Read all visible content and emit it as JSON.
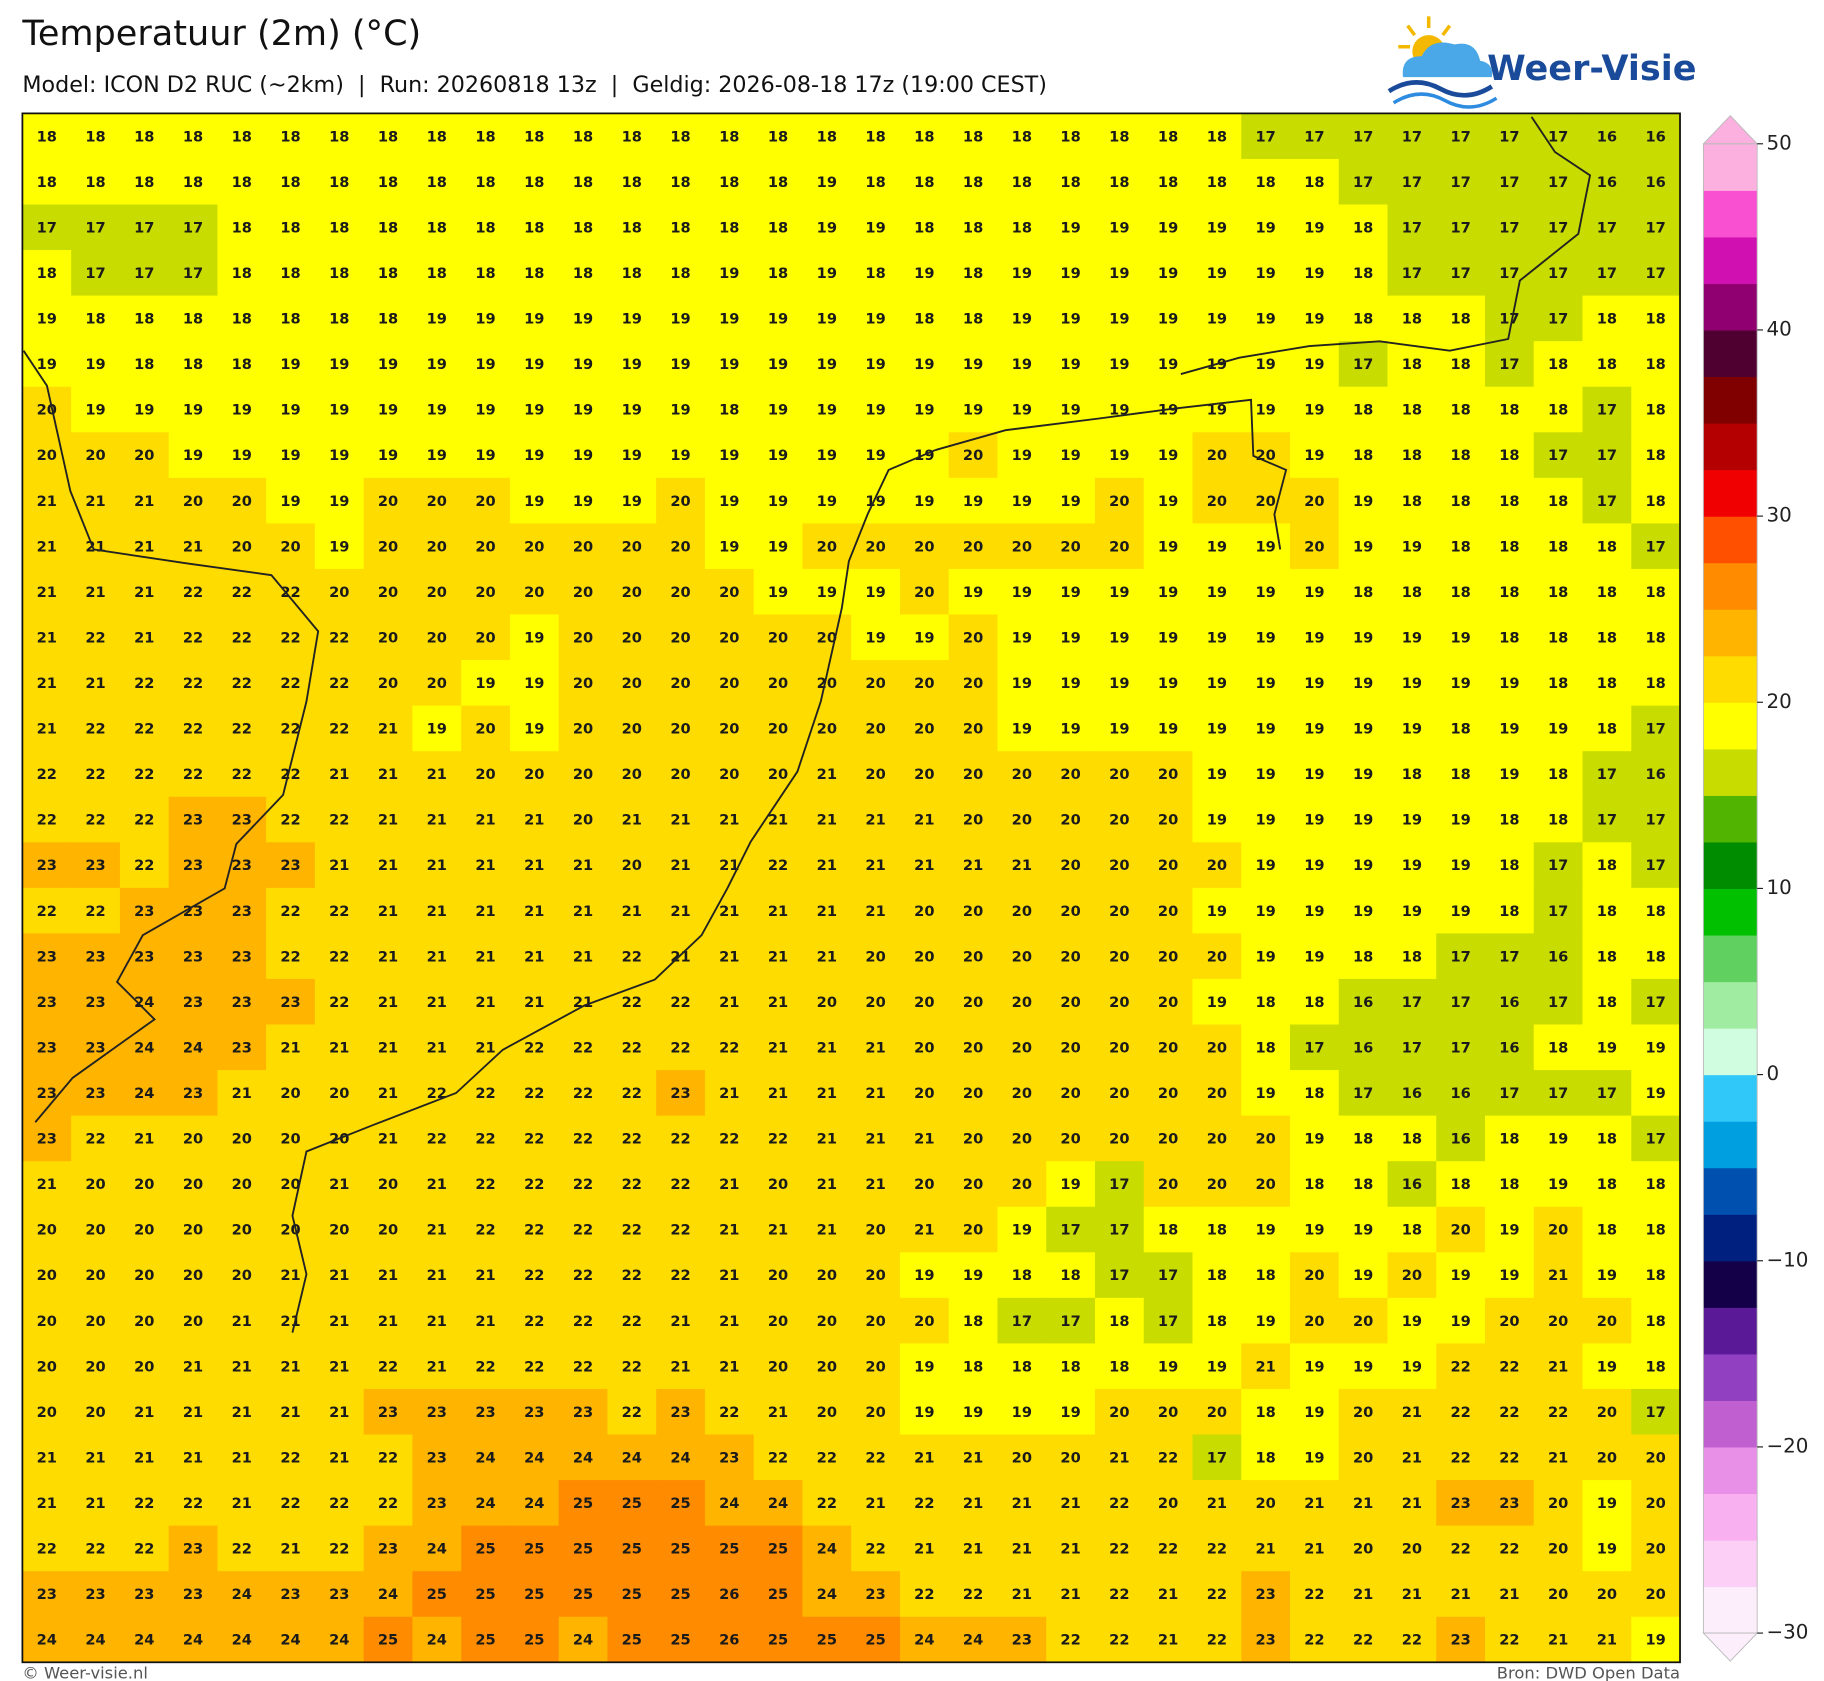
{
  "header": {
    "title": "Temperatuur (2m) (°C)",
    "subtitle": "Model: ICON D2 RUC (~2km)  |  Run: 20260818 13z  |  Geldig: 2026-08-18 17z (19:00 CEST)"
  },
  "logo": {
    "text": "Weer-Visie"
  },
  "grid": {
    "rows": [
      [
        18,
        18,
        18,
        18,
        18,
        18,
        18,
        18,
        18,
        18,
        18,
        18,
        18,
        18,
        18,
        18,
        18,
        18,
        18,
        18,
        18,
        18,
        18,
        18,
        18,
        17,
        17,
        17,
        17,
        17,
        17,
        17,
        16,
        16
      ],
      [
        18,
        18,
        18,
        18,
        18,
        18,
        18,
        18,
        18,
        18,
        18,
        18,
        18,
        18,
        18,
        18,
        19,
        18,
        18,
        18,
        18,
        18,
        18,
        18,
        18,
        18,
        18,
        17,
        17,
        17,
        17,
        17,
        16,
        16
      ],
      [
        17,
        17,
        17,
        17,
        18,
        18,
        18,
        18,
        18,
        18,
        18,
        18,
        18,
        18,
        18,
        18,
        19,
        19,
        18,
        18,
        18,
        19,
        19,
        19,
        19,
        19,
        19,
        18,
        17,
        17,
        17,
        17,
        17,
        17
      ],
      [
        18,
        17,
        17,
        17,
        18,
        18,
        18,
        18,
        18,
        18,
        18,
        18,
        18,
        18,
        19,
        18,
        19,
        18,
        19,
        18,
        19,
        19,
        19,
        19,
        19,
        19,
        19,
        18,
        17,
        17,
        17,
        17,
        17,
        17
      ],
      [
        19,
        18,
        18,
        18,
        18,
        18,
        18,
        18,
        19,
        19,
        19,
        19,
        19,
        19,
        19,
        19,
        19,
        19,
        18,
        18,
        19,
        19,
        19,
        19,
        19,
        19,
        19,
        18,
        18,
        18,
        17,
        17,
        18,
        18
      ],
      [
        19,
        19,
        18,
        18,
        18,
        19,
        19,
        19,
        19,
        19,
        19,
        19,
        19,
        19,
        19,
        19,
        19,
        19,
        19,
        19,
        19,
        19,
        19,
        19,
        19,
        19,
        19,
        17,
        18,
        18,
        17,
        18,
        18,
        18
      ],
      [
        20,
        19,
        19,
        19,
        19,
        19,
        19,
        19,
        19,
        19,
        19,
        19,
        19,
        19,
        18,
        19,
        19,
        19,
        19,
        19,
        19,
        19,
        19,
        19,
        19,
        19,
        19,
        18,
        18,
        18,
        18,
        18,
        17,
        18
      ],
      [
        20,
        20,
        20,
        19,
        19,
        19,
        19,
        19,
        19,
        19,
        19,
        19,
        19,
        19,
        19,
        19,
        19,
        19,
        19,
        20,
        19,
        19,
        19,
        19,
        20,
        20,
        19,
        18,
        18,
        18,
        18,
        17,
        17,
        18
      ],
      [
        21,
        21,
        21,
        20,
        20,
        19,
        19,
        20,
        20,
        20,
        19,
        19,
        19,
        20,
        19,
        19,
        19,
        19,
        19,
        19,
        19,
        19,
        20,
        19,
        20,
        20,
        20,
        19,
        18,
        18,
        18,
        18,
        17,
        18
      ],
      [
        21,
        21,
        21,
        21,
        20,
        20,
        19,
        20,
        20,
        20,
        20,
        20,
        20,
        20,
        19,
        19,
        20,
        20,
        20,
        20,
        20,
        20,
        20,
        19,
        19,
        19,
        20,
        19,
        19,
        18,
        18,
        18,
        18,
        17
      ],
      [
        21,
        21,
        21,
        22,
        22,
        22,
        20,
        20,
        20,
        20,
        20,
        20,
        20,
        20,
        20,
        19,
        19,
        19,
        20,
        19,
        19,
        19,
        19,
        19,
        19,
        19,
        19,
        18,
        18,
        18,
        18,
        18,
        18,
        18
      ],
      [
        21,
        22,
        21,
        22,
        22,
        22,
        22,
        20,
        20,
        20,
        19,
        20,
        20,
        20,
        20,
        20,
        20,
        19,
        19,
        20,
        19,
        19,
        19,
        19,
        19,
        19,
        19,
        19,
        19,
        19,
        18,
        18,
        18,
        18
      ],
      [
        21,
        21,
        22,
        22,
        22,
        22,
        22,
        20,
        20,
        19,
        19,
        20,
        20,
        20,
        20,
        20,
        20,
        20,
        20,
        20,
        19,
        19,
        19,
        19,
        19,
        19,
        19,
        19,
        19,
        19,
        19,
        18,
        18,
        18
      ],
      [
        21,
        22,
        22,
        22,
        22,
        22,
        22,
        21,
        19,
        20,
        19,
        20,
        20,
        20,
        20,
        20,
        20,
        20,
        20,
        20,
        19,
        19,
        19,
        19,
        19,
        19,
        19,
        19,
        19,
        18,
        19,
        19,
        18,
        17
      ],
      [
        22,
        22,
        22,
        22,
        22,
        22,
        21,
        21,
        21,
        20,
        20,
        20,
        20,
        20,
        20,
        20,
        21,
        20,
        20,
        20,
        20,
        20,
        20,
        20,
        19,
        19,
        19,
        19,
        18,
        18,
        19,
        18,
        17,
        16
      ],
      [
        22,
        22,
        22,
        23,
        23,
        22,
        22,
        21,
        21,
        21,
        21,
        20,
        21,
        21,
        21,
        21,
        21,
        21,
        21,
        20,
        20,
        20,
        20,
        20,
        19,
        19,
        19,
        19,
        19,
        19,
        18,
        18,
        17,
        17
      ],
      [
        23,
        23,
        22,
        23,
        23,
        23,
        21,
        21,
        21,
        21,
        21,
        21,
        20,
        21,
        21,
        22,
        21,
        21,
        21,
        21,
        21,
        20,
        20,
        20,
        20,
        19,
        19,
        19,
        19,
        19,
        18,
        17,
        18,
        17
      ],
      [
        22,
        22,
        23,
        23,
        23,
        22,
        22,
        21,
        21,
        21,
        21,
        21,
        21,
        21,
        21,
        21,
        21,
        21,
        20,
        20,
        20,
        20,
        20,
        20,
        19,
        19,
        19,
        19,
        19,
        19,
        18,
        17,
        18,
        18
      ],
      [
        23,
        23,
        23,
        23,
        23,
        22,
        22,
        21,
        21,
        21,
        21,
        21,
        22,
        21,
        21,
        21,
        21,
        20,
        20,
        20,
        20,
        20,
        20,
        20,
        20,
        19,
        19,
        18,
        18,
        17,
        17,
        16,
        18,
        18
      ],
      [
        23,
        23,
        24,
        23,
        23,
        23,
        22,
        21,
        21,
        21,
        21,
        21,
        22,
        22,
        21,
        21,
        20,
        20,
        20,
        20,
        20,
        20,
        20,
        20,
        19,
        18,
        18,
        16,
        17,
        17,
        16,
        17,
        18,
        17
      ],
      [
        23,
        23,
        24,
        24,
        23,
        21,
        21,
        21,
        21,
        21,
        22,
        22,
        22,
        22,
        22,
        21,
        21,
        21,
        20,
        20,
        20,
        20,
        20,
        20,
        20,
        18,
        17,
        16,
        17,
        17,
        16,
        18,
        19,
        19
      ],
      [
        23,
        23,
        24,
        23,
        21,
        20,
        20,
        21,
        22,
        22,
        22,
        22,
        22,
        23,
        21,
        21,
        21,
        21,
        20,
        20,
        20,
        20,
        20,
        20,
        20,
        19,
        18,
        17,
        16,
        16,
        17,
        17,
        17,
        19
      ],
      [
        23,
        22,
        21,
        20,
        20,
        20,
        20,
        21,
        22,
        22,
        22,
        22,
        22,
        22,
        22,
        22,
        21,
        21,
        21,
        20,
        20,
        20,
        20,
        20,
        20,
        20,
        19,
        18,
        18,
        16,
        18,
        19,
        18,
        17
      ],
      [
        21,
        20,
        20,
        20,
        20,
        20,
        21,
        20,
        21,
        22,
        22,
        22,
        22,
        22,
        21,
        20,
        21,
        21,
        20,
        20,
        20,
        19,
        17,
        20,
        20,
        20,
        18,
        18,
        16,
        18,
        18,
        19,
        18,
        18
      ],
      [
        20,
        20,
        20,
        20,
        20,
        20,
        20,
        20,
        21,
        22,
        22,
        22,
        22,
        22,
        21,
        21,
        21,
        20,
        21,
        20,
        19,
        17,
        17,
        18,
        18,
        19,
        19,
        19,
        18,
        20,
        19,
        20,
        18,
        18
      ],
      [
        20,
        20,
        20,
        20,
        20,
        21,
        21,
        21,
        21,
        21,
        22,
        22,
        22,
        22,
        21,
        20,
        20,
        20,
        19,
        19,
        18,
        18,
        17,
        17,
        18,
        18,
        20,
        19,
        20,
        19,
        19,
        21,
        19,
        18
      ],
      [
        20,
        20,
        20,
        20,
        21,
        21,
        21,
        21,
        21,
        21,
        22,
        22,
        22,
        21,
        21,
        20,
        20,
        20,
        20,
        18,
        17,
        17,
        18,
        17,
        18,
        19,
        20,
        20,
        19,
        19,
        20,
        20,
        20,
        18
      ],
      [
        20,
        20,
        20,
        21,
        21,
        21,
        21,
        22,
        21,
        22,
        22,
        22,
        22,
        21,
        21,
        20,
        20,
        20,
        19,
        18,
        18,
        18,
        18,
        19,
        19,
        21,
        19,
        19,
        19,
        22,
        22,
        21,
        19,
        18
      ],
      [
        20,
        20,
        21,
        21,
        21,
        21,
        21,
        23,
        23,
        23,
        23,
        23,
        22,
        23,
        22,
        21,
        20,
        20,
        19,
        19,
        19,
        19,
        20,
        20,
        20,
        18,
        19,
        20,
        21,
        22,
        22,
        22,
        20,
        17
      ],
      [
        21,
        21,
        21,
        21,
        21,
        22,
        21,
        22,
        23,
        24,
        24,
        24,
        24,
        24,
        23,
        22,
        22,
        22,
        21,
        21,
        20,
        20,
        21,
        22,
        17,
        18,
        19,
        20,
        21,
        22,
        22,
        21,
        20,
        20
      ],
      [
        21,
        21,
        22,
        22,
        21,
        22,
        22,
        22,
        23,
        24,
        24,
        25,
        25,
        25,
        24,
        24,
        22,
        21,
        22,
        21,
        21,
        21,
        22,
        20,
        21,
        20,
        21,
        21,
        21,
        23,
        23,
        20,
        19,
        20
      ],
      [
        22,
        22,
        22,
        23,
        22,
        21,
        22,
        23,
        24,
        25,
        25,
        25,
        25,
        25,
        25,
        25,
        24,
        22,
        21,
        21,
        21,
        21,
        22,
        22,
        22,
        21,
        21,
        20,
        20,
        22,
        22,
        20,
        19,
        20
      ],
      [
        23,
        23,
        23,
        23,
        24,
        23,
        23,
        24,
        25,
        25,
        25,
        25,
        25,
        25,
        26,
        25,
        24,
        23,
        22,
        22,
        21,
        21,
        22,
        21,
        22,
        23,
        22,
        21,
        21,
        21,
        21,
        20,
        20,
        20
      ],
      [
        24,
        24,
        24,
        24,
        24,
        24,
        24,
        25,
        24,
        25,
        25,
        24,
        25,
        25,
        26,
        25,
        25,
        25,
        24,
        24,
        23,
        22,
        22,
        21,
        22,
        23,
        22,
        22,
        22,
        23,
        22,
        21,
        21,
        19
      ]
    ]
  },
  "colorbar": {
    "lim": [
      -30,
      50
    ],
    "colors": [
      "#fdeefc",
      "#fcd0f6",
      "#f8b0f0",
      "#e890e8",
      "#c060d0",
      "#9040c0",
      "#5a1a98",
      "#140048",
      "#002080",
      "#0050b0",
      "#00a0e0",
      "#30c8f8",
      "#d0fce0",
      "#a0eca0",
      "#60d060",
      "#00c000",
      "#008c00",
      "#50b400",
      "#c8dc00",
      "#ffff00",
      "#ffdc00",
      "#ffb400",
      "#ff8c00",
      "#ff5000",
      "#f00000",
      "#b40000",
      "#800000",
      "#500030",
      "#900070",
      "#d010b0",
      "#f850d0",
      "#fbb0e0"
    ],
    "ticks": [
      50,
      40,
      30,
      20,
      10,
      0,
      {
        "value": -10,
        "label": "−10"
      },
      {
        "value": -20,
        "label": "−20"
      },
      {
        "value": -30,
        "label": "−30"
      }
    ]
  },
  "footer": {
    "left": "© Weer-visie.nl",
    "right": "Bron: DWD Open Data"
  }
}
